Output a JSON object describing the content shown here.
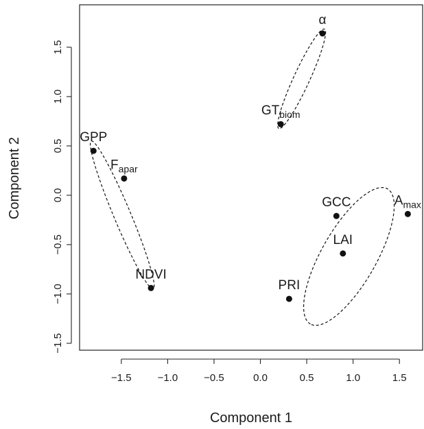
{
  "chart_data": {
    "type": "scatter",
    "title": "",
    "xlabel": "Component 1",
    "ylabel": "Component 2",
    "xlim": [
      -1.95,
      1.75
    ],
    "ylim": [
      -1.57,
      1.93
    ],
    "x_ticks": [
      -1.5,
      -1.0,
      -0.5,
      0.0,
      0.5,
      1.0,
      1.5
    ],
    "y_ticks": [
      -1.5,
      -1.0,
      -0.5,
      0.0,
      0.5,
      1.0,
      1.5
    ],
    "x_tick_labels": [
      "−1.5",
      "−1.0",
      "−0.5",
      "0.0",
      "0.5",
      "1.0",
      "1.5"
    ],
    "y_tick_labels": [
      "−1.5",
      "−1.0",
      "−0.5",
      "0.0",
      "0.5",
      "1.0",
      "1.5"
    ],
    "grid": false,
    "legend": "none",
    "point_color": "#111111",
    "points": [
      {
        "label": "α",
        "sub": "",
        "x": 0.67,
        "y": 1.64,
        "label_pos": "above"
      },
      {
        "label": "GT",
        "sub": "biom",
        "x": 0.22,
        "y": 0.72,
        "label_pos": "above"
      },
      {
        "label": "GPP",
        "sub": "",
        "x": -1.8,
        "y": 0.45,
        "label_pos": "above"
      },
      {
        "label": "F",
        "sub": "apar",
        "x": -1.47,
        "y": 0.17,
        "label_pos": "above"
      },
      {
        "label": "NDVI",
        "sub": "",
        "x": -1.18,
        "y": -0.94,
        "label_pos": "above"
      },
      {
        "label": "GCC",
        "sub": "",
        "x": 0.82,
        "y": -0.21,
        "label_pos": "above"
      },
      {
        "label": "A",
        "sub": "max",
        "x": 1.59,
        "y": -0.19,
        "label_pos": "above"
      },
      {
        "label": "LAI",
        "sub": "",
        "x": 0.89,
        "y": -0.59,
        "label_pos": "above"
      },
      {
        "label": "PRI",
        "sub": "",
        "x": 0.31,
        "y": -1.05,
        "label_pos": "above"
      }
    ],
    "clusters": [
      {
        "members": [
          "α",
          "GT"
        ],
        "cx": 0.445,
        "cy": 1.18,
        "semi_major": 0.56,
        "semi_minor": 0.085
      },
      {
        "members": [
          "GPP",
          "F",
          "NDVI"
        ],
        "cx": -1.49,
        "cy": -0.2,
        "semi_major": 0.82,
        "semi_minor": 0.09
      },
      {
        "members": [
          "GCC",
          "A",
          "LAI",
          "PRI"
        ],
        "cx": 0.955,
        "cy": -0.62,
        "semi_major": 0.8,
        "semi_minor": 0.29
      }
    ]
  }
}
